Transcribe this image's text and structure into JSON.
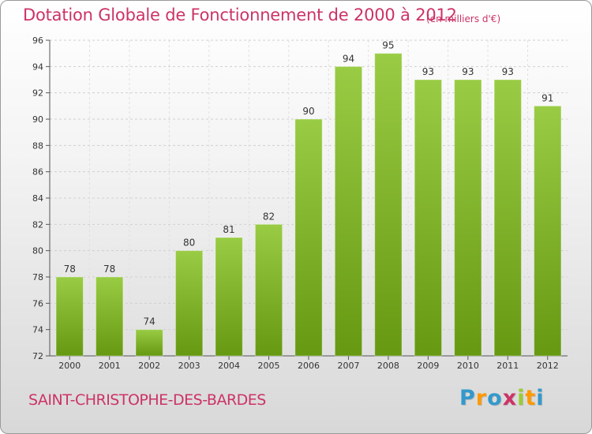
{
  "header": {
    "title": "Dotation Globale de Fonctionnement de 2000 à 2012",
    "subtitle": "(en milliers d'€)"
  },
  "footer": {
    "commune": "SAINT-CHRISTOPHE-DES-BARDES",
    "logo": [
      "P",
      "r",
      "o",
      "x",
      "i",
      "t",
      "i"
    ]
  },
  "colors": {
    "accent": "#cc3366",
    "bar_top": "#99cc44",
    "bar_bottom": "#669911",
    "logo": [
      "#3399cc",
      "#ff9900",
      "#3399cc",
      "#cc3366",
      "#99cc33",
      "#ff9900",
      "#3399cc"
    ]
  },
  "chart_data": {
    "type": "bar",
    "title": "Dotation Globale de Fonctionnement de 2000 à 2012",
    "subtitle": "(en milliers d'€)",
    "xlabel": "",
    "ylabel": "",
    "categories": [
      "2000",
      "2001",
      "2002",
      "2003",
      "2004",
      "2005",
      "2006",
      "2007",
      "2008",
      "2009",
      "2010",
      "2011",
      "2012"
    ],
    "values": [
      78,
      78,
      74,
      80,
      81,
      82,
      90,
      94,
      95,
      93,
      93,
      93,
      91
    ],
    "ylim": [
      72,
      96
    ],
    "yticks": [
      72,
      74,
      76,
      78,
      80,
      82,
      84,
      86,
      88,
      90,
      92,
      94,
      96
    ],
    "grid": true
  }
}
